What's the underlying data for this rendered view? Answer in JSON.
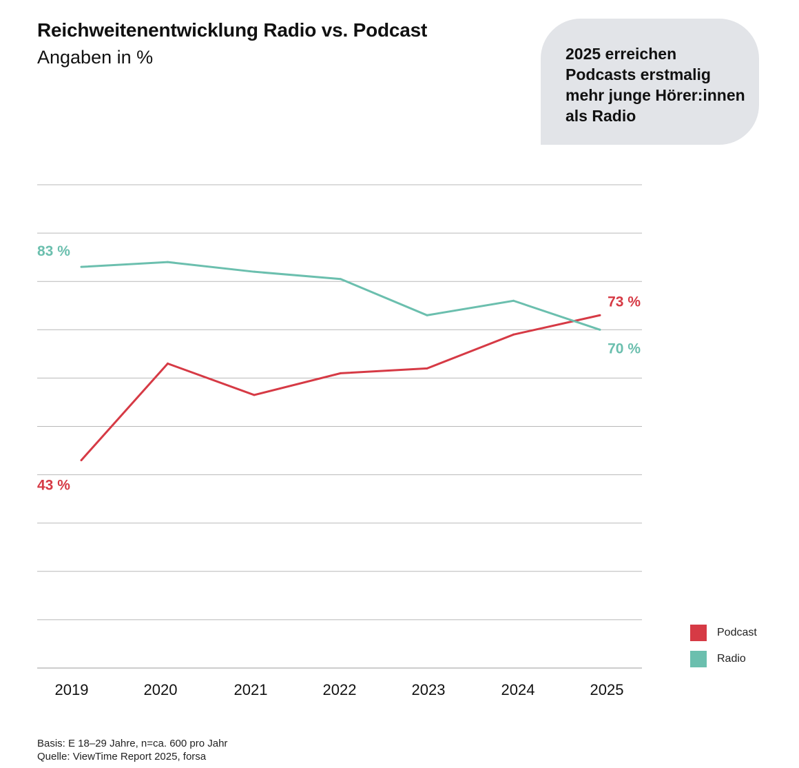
{
  "title": "Reichweitenentwicklung Radio vs. Podcast",
  "subtitle": "Angaben in %",
  "callout": "2025 erreichen Podcasts erstmalig mehr junge Hörer:innen als Radio",
  "chart_data": {
    "type": "line",
    "title": "Reichweitenentwicklung Radio vs. Podcast",
    "subtitle": "Angaben in %",
    "categories": [
      "2019",
      "2020",
      "2021",
      "2022",
      "2023",
      "2024",
      "2025"
    ],
    "series": [
      {
        "name": "Podcast",
        "color": "#d63a45",
        "values": [
          43,
          63,
          56.5,
          61,
          62,
          69,
          73
        ],
        "labels": [
          {
            "index": 0,
            "text": "43 %",
            "position": "below-start"
          },
          {
            "index": 6,
            "text": "73 %",
            "position": "above-end"
          }
        ]
      },
      {
        "name": "Radio",
        "color": "#6bbfae",
        "values": [
          83,
          84,
          82,
          80.5,
          73,
          76,
          70
        ],
        "labels": [
          {
            "index": 0,
            "text": "83 %",
            "position": "above-start"
          },
          {
            "index": 6,
            "text": "70 %",
            "position": "below-end"
          }
        ]
      }
    ],
    "ylim": [
      0,
      100
    ],
    "yticks": [
      0,
      10,
      20,
      30,
      40,
      50,
      60,
      70,
      80,
      90,
      100
    ],
    "ytick_labels_shown": false,
    "grid": true,
    "xlabel": "",
    "ylabel": "",
    "legend": "right-bottom"
  },
  "legend": [
    {
      "label": "Podcast",
      "color": "#d63a45"
    },
    {
      "label": "Radio",
      "color": "#6bbfae"
    }
  ],
  "footer": {
    "basis": "Basis: E 18–29 Jahre, n=ca. 600 pro Jahr",
    "source": "Quelle: ViewTime Report 2025, forsa"
  }
}
